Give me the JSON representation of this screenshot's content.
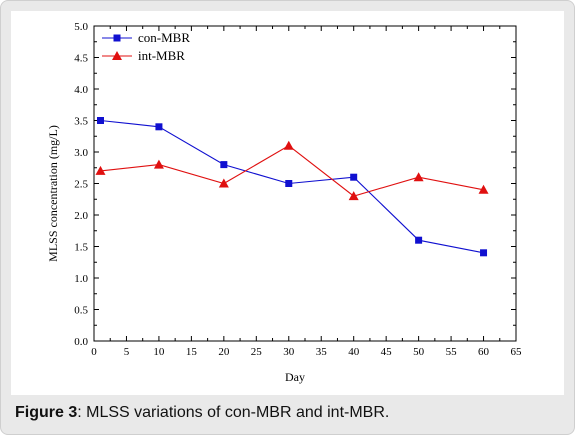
{
  "caption": {
    "label": "Figure 3",
    "text": ": MLSS variations of con-MBR and int-MBR."
  },
  "chart_data": {
    "type": "line",
    "title": "",
    "xlabel": "Day",
    "ylabel": "MLSS concentration (mg/L)",
    "xlim": [
      0,
      65
    ],
    "ylim": [
      0,
      5.0
    ],
    "xticks": [
      0,
      5,
      10,
      15,
      20,
      25,
      30,
      35,
      40,
      45,
      50,
      55,
      60,
      65
    ],
    "yticks": [
      "0.0",
      "0.5",
      "1.0",
      "1.5",
      "2.0",
      "2.5",
      "3.0",
      "3.5",
      "4.0",
      "4.5",
      "5.0"
    ],
    "grid": false,
    "legend_position": "top-left",
    "series": [
      {
        "name": "con-MBR",
        "color": "#1010d0",
        "marker": "square",
        "x": [
          1,
          10,
          20,
          30,
          40,
          50,
          60
        ],
        "y": [
          3.5,
          3.4,
          2.8,
          2.5,
          2.6,
          1.6,
          1.4
        ]
      },
      {
        "name": "int-MBR",
        "color": "#e01010",
        "marker": "triangle",
        "x": [
          1,
          10,
          20,
          30,
          40,
          50,
          60
        ],
        "y": [
          2.7,
          2.8,
          2.5,
          3.1,
          2.3,
          2.6,
          2.4
        ]
      }
    ]
  }
}
